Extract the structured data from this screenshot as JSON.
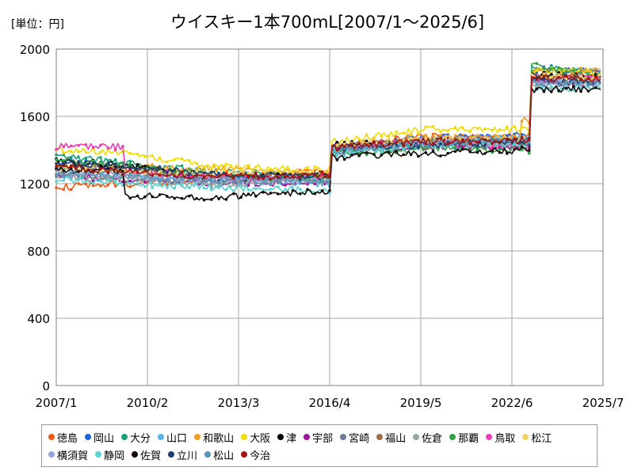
{
  "unit_label": "[単位：円]",
  "chart_data": {
    "type": "line",
    "title": "ウイスキー1本700mL[2007/1～2025/6]",
    "xlabel": "",
    "ylabel": "",
    "xlim": [
      "2007/1",
      "2025/7"
    ],
    "ylim": [
      0,
      2000
    ],
    "x_ticks": [
      "2007/1",
      "2010/2",
      "2013/3",
      "2016/4",
      "2019/5",
      "2022/6",
      "2025/7"
    ],
    "y_ticks": [
      0,
      400,
      800,
      1200,
      1600,
      2000
    ],
    "grid": true,
    "legend_position": "bottom",
    "series": [
      {
        "name": "徳島",
        "color": "#f05a14",
        "points": [
          [
            "2007/1",
            1180
          ],
          [
            "2009/6",
            1200
          ],
          [
            "2012/6",
            1230
          ],
          [
            "2015/12",
            1270
          ],
          [
            "2016/6",
            1420
          ],
          [
            "2019/6",
            1480
          ],
          [
            "2022/11",
            1480
          ],
          [
            "2023/3",
            1830
          ],
          [
            "2025/6",
            1850
          ]
        ]
      },
      {
        "name": "岡山",
        "color": "#1e64dc",
        "points": [
          [
            "2007/1",
            1340
          ],
          [
            "2009/6",
            1290
          ],
          [
            "2012/6",
            1220
          ],
          [
            "2015/12",
            1250
          ],
          [
            "2016/6",
            1410
          ],
          [
            "2019/6",
            1470
          ],
          [
            "2022/11",
            1490
          ],
          [
            "2023/3",
            1880
          ],
          [
            "2025/6",
            1870
          ]
        ]
      },
      {
        "name": "大分",
        "color": "#1aa07a",
        "points": [
          [
            "2007/1",
            1370
          ],
          [
            "2009/6",
            1320
          ],
          [
            "2012/6",
            1270
          ],
          [
            "2015/12",
            1240
          ],
          [
            "2016/6",
            1380
          ],
          [
            "2019/6",
            1430
          ],
          [
            "2022/11",
            1420
          ],
          [
            "2023/3",
            1900
          ],
          [
            "2025/6",
            1860
          ]
        ]
      },
      {
        "name": "山口",
        "color": "#5ab4e8",
        "points": [
          [
            "2007/1",
            1280
          ],
          [
            "2009/6",
            1260
          ],
          [
            "2012/6",
            1230
          ],
          [
            "2015/12",
            1200
          ],
          [
            "2016/6",
            1400
          ],
          [
            "2019/6",
            1450
          ],
          [
            "2022/11",
            1470
          ],
          [
            "2023/3",
            1820
          ],
          [
            "2025/6",
            1810
          ]
        ]
      },
      {
        "name": "和歌山",
        "color": "#f0a01e",
        "points": [
          [
            "2007/1",
            1310
          ],
          [
            "2009/6",
            1300
          ],
          [
            "2012/6",
            1290
          ],
          [
            "2015/12",
            1260
          ],
          [
            "2016/6",
            1400
          ],
          [
            "2019/6",
            1470
          ],
          [
            "2022/11",
            1580
          ],
          [
            "2023/3",
            1860
          ],
          [
            "2025/6",
            1880
          ]
        ]
      },
      {
        "name": "大阪",
        "color": "#f0dc00",
        "points": [
          [
            "2007/1",
            1400
          ],
          [
            "2009/6",
            1380
          ],
          [
            "2012/6",
            1300
          ],
          [
            "2015/12",
            1280
          ],
          [
            "2016/6",
            1450
          ],
          [
            "2019/6",
            1520
          ],
          [
            "2022/11",
            1520
          ],
          [
            "2023/3",
            1870
          ],
          [
            "2025/6",
            1860
          ]
        ]
      },
      {
        "name": "津",
        "color": "#000000",
        "points": [
          [
            "2007/1",
            1330
          ],
          [
            "2009/6",
            1310
          ],
          [
            "2012/6",
            1220
          ],
          [
            "2015/12",
            1260
          ],
          [
            "2016/6",
            1430
          ],
          [
            "2019/6",
            1460
          ],
          [
            "2022/11",
            1450
          ],
          [
            "2023/3",
            1850
          ],
          [
            "2025/6",
            1840
          ]
        ]
      },
      {
        "name": "宇部",
        "color": "#a0149a",
        "points": [
          [
            "2007/1",
            1250
          ],
          [
            "2009/6",
            1220
          ],
          [
            "2012/6",
            1200
          ],
          [
            "2015/12",
            1210
          ],
          [
            "2016/6",
            1390
          ],
          [
            "2019/6",
            1420
          ],
          [
            "2022/11",
            1420
          ],
          [
            "2023/3",
            1790
          ],
          [
            "2025/6",
            1800
          ]
        ]
      },
      {
        "name": "宮崎",
        "color": "#6e7d96",
        "points": [
          [
            "2007/1",
            1260
          ],
          [
            "2009/6",
            1240
          ],
          [
            "2012/6",
            1210
          ],
          [
            "2015/12",
            1230
          ],
          [
            "2016/6",
            1400
          ],
          [
            "2019/6",
            1440
          ],
          [
            "2022/11",
            1450
          ],
          [
            "2023/3",
            1810
          ],
          [
            "2025/6",
            1820
          ]
        ]
      },
      {
        "name": "福山",
        "color": "#a06e46",
        "points": [
          [
            "2007/1",
            1300
          ],
          [
            "2009/6",
            1280
          ],
          [
            "2012/6",
            1240
          ],
          [
            "2015/12",
            1250
          ],
          [
            "2016/6",
            1420
          ],
          [
            "2019/6",
            1460
          ],
          [
            "2022/11",
            1460
          ],
          [
            "2023/3",
            1830
          ],
          [
            "2025/6",
            1830
          ]
        ]
      },
      {
        "name": "佐倉",
        "color": "#96aaa0",
        "points": [
          [
            "2007/1",
            1240
          ],
          [
            "2009/6",
            1230
          ],
          [
            "2012/6",
            1190
          ],
          [
            "2015/12",
            1220
          ],
          [
            "2016/6",
            1390
          ],
          [
            "2019/6",
            1430
          ],
          [
            "2022/11",
            1440
          ],
          [
            "2023/3",
            1780
          ],
          [
            "2025/6",
            1790
          ]
        ]
      },
      {
        "name": "那覇",
        "color": "#32a046",
        "points": [
          [
            "2007/1",
            1350
          ],
          [
            "2009/6",
            1300
          ],
          [
            "2012/6",
            1250
          ],
          [
            "2015/12",
            1230
          ],
          [
            "2016/6",
            1380
          ],
          [
            "2019/6",
            1410
          ],
          [
            "2022/11",
            1400
          ],
          [
            "2023/3",
            1900
          ],
          [
            "2025/6",
            1820
          ]
        ]
      },
      {
        "name": "鳥取",
        "color": "#f03cb4",
        "points": [
          [
            "2007/1",
            1420
          ],
          [
            "2009/6",
            1280
          ],
          [
            "2012/6",
            1230
          ],
          [
            "2015/12",
            1240
          ],
          [
            "2016/6",
            1410
          ],
          [
            "2019/6",
            1450
          ],
          [
            "2022/11",
            1420
          ],
          [
            "2023/3",
            1820
          ],
          [
            "2025/6",
            1830
          ]
        ]
      },
      {
        "name": "松江",
        "color": "#f0d264",
        "points": [
          [
            "2007/1",
            1290
          ],
          [
            "2009/6",
            1270
          ],
          [
            "2012/6",
            1260
          ],
          [
            "2015/12",
            1270
          ],
          [
            "2016/6",
            1430
          ],
          [
            "2019/6",
            1460
          ],
          [
            "2022/11",
            1470
          ],
          [
            "2023/3",
            1840
          ],
          [
            "2025/6",
            1820
          ]
        ]
      },
      {
        "name": "横須賀",
        "color": "#96a5dc",
        "points": [
          [
            "2007/1",
            1270
          ],
          [
            "2009/6",
            1250
          ],
          [
            "2012/6",
            1220
          ],
          [
            "2015/12",
            1220
          ],
          [
            "2016/6",
            1390
          ],
          [
            "2019/6",
            1440
          ],
          [
            "2022/11",
            1460
          ],
          [
            "2023/3",
            1800
          ],
          [
            "2025/6",
            1800
          ]
        ]
      },
      {
        "name": "静岡",
        "color": "#5ad2d2",
        "points": [
          [
            "2007/1",
            1230
          ],
          [
            "2009/6",
            1200
          ],
          [
            "2012/6",
            1180
          ],
          [
            "2015/12",
            1160
          ],
          [
            "2016/6",
            1380
          ],
          [
            "2019/6",
            1430
          ],
          [
            "2022/11",
            1430
          ],
          [
            "2023/3",
            1760
          ],
          [
            "2025/6",
            1770
          ]
        ]
      },
      {
        "name": "佐賀",
        "color": "#140a0a",
        "points": [
          [
            "2007/1",
            1280
          ],
          [
            "2009/6",
            1130
          ],
          [
            "2012/6",
            1120
          ],
          [
            "2015/12",
            1150
          ],
          [
            "2016/6",
            1360
          ],
          [
            "2019/6",
            1380
          ],
          [
            "2022/11",
            1400
          ],
          [
            "2023/3",
            1760
          ],
          [
            "2025/6",
            1760
          ]
        ]
      },
      {
        "name": "立川",
        "color": "#1e3c6e",
        "points": [
          [
            "2007/1",
            1320
          ],
          [
            "2009/6",
            1300
          ],
          [
            "2012/6",
            1260
          ],
          [
            "2015/12",
            1240
          ],
          [
            "2016/6",
            1410
          ],
          [
            "2019/6",
            1430
          ],
          [
            "2022/11",
            1450
          ],
          [
            "2023/3",
            1820
          ],
          [
            "2025/6",
            1800
          ]
        ]
      },
      {
        "name": "松山",
        "color": "#5a96b4",
        "points": [
          [
            "2007/1",
            1260
          ],
          [
            "2009/6",
            1240
          ],
          [
            "2012/6",
            1220
          ],
          [
            "2015/12",
            1210
          ],
          [
            "2016/6",
            1400
          ],
          [
            "2019/6",
            1440
          ],
          [
            "2022/11",
            1460
          ],
          [
            "2023/3",
            1800
          ],
          [
            "2025/6",
            1790
          ]
        ]
      },
      {
        "name": "今治",
        "color": "#a01414",
        "points": [
          [
            "2007/1",
            1300
          ],
          [
            "2009/6",
            1270
          ],
          [
            "2012/6",
            1240
          ],
          [
            "2015/12",
            1250
          ],
          [
            "2016/6",
            1420
          ],
          [
            "2019/6",
            1450
          ],
          [
            "2022/11",
            1460
          ],
          [
            "2023/3",
            1830
          ],
          [
            "2025/6",
            1820
          ]
        ]
      }
    ]
  }
}
